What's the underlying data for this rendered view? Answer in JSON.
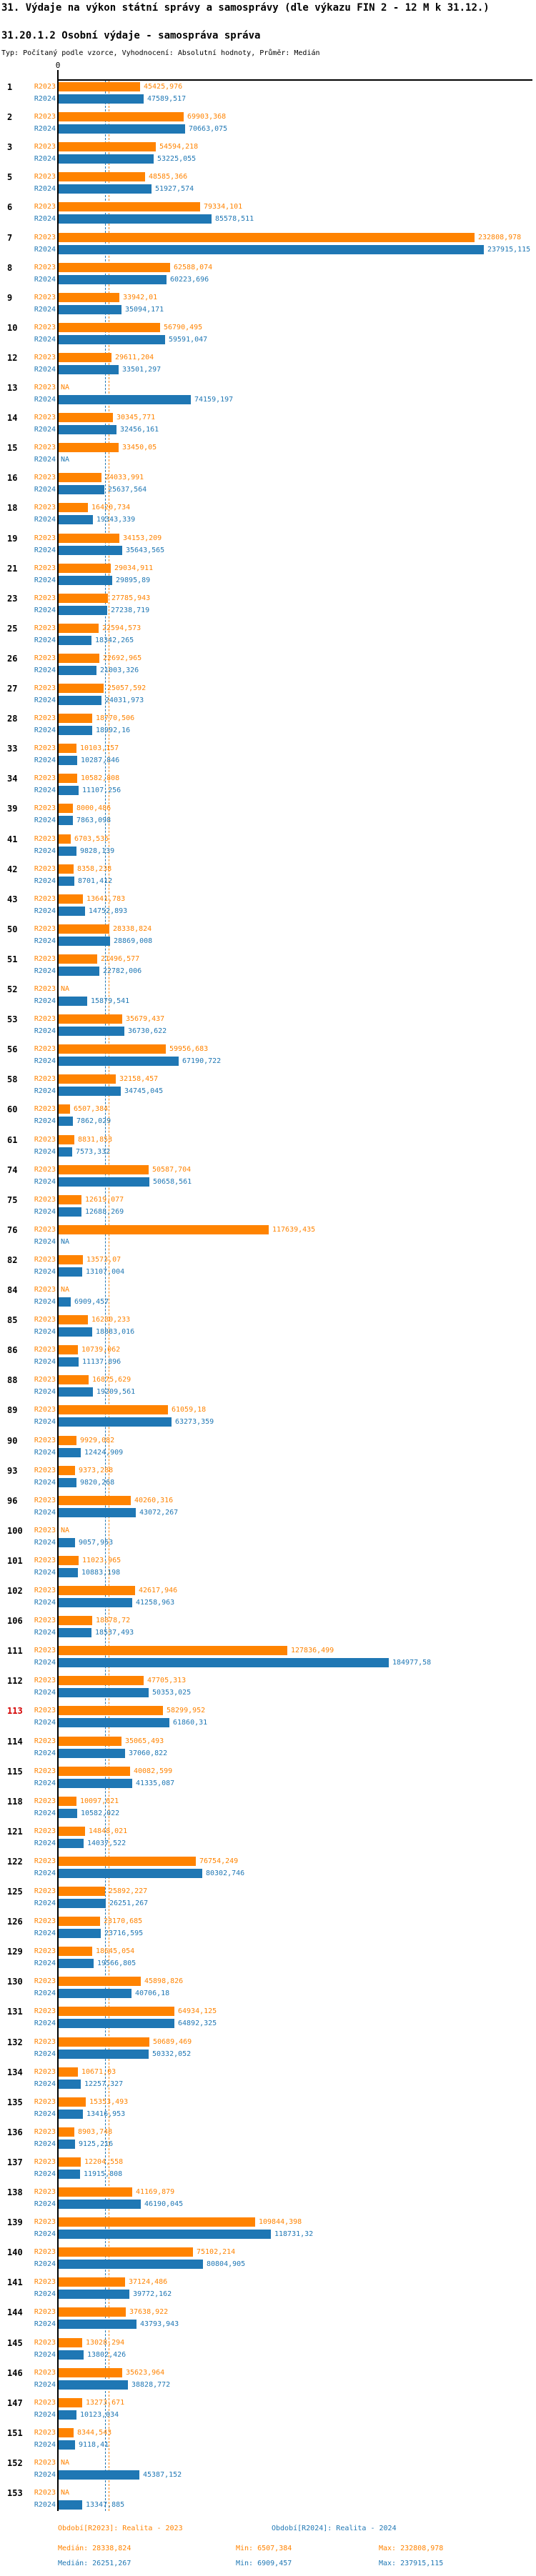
{
  "header": {
    "title": "31. Výdaje na výkon státní správy a samosprávy (dle výkazu FIN 2 - 12 M k 31.12.)",
    "subtitle": "31.20.1.2 Osobní výdaje - samospráva správa",
    "meta": "Typ: Počítaný podle vzorce, Vyhodnocení: Absolutní hodnoty, Průměr: Medián"
  },
  "axis": {
    "zero_label": "0"
  },
  "na_label": "NA",
  "series_labels": {
    "r2023": "R2023",
    "r2024": "R2024"
  },
  "colors": {
    "r2023": "#ff8300",
    "r2024": "#1f77b4",
    "highlight_row": "#d40000",
    "axis": "#000000"
  },
  "legend": {
    "r2023": "Období[R2023]: Realita - 2023",
    "r2024": "Období[R2024]: Realita - 2024"
  },
  "stats": {
    "r2023": {
      "median": "Medián: 28338,824",
      "min": "Min: 6507,384",
      "max": "Max: 232808,978"
    },
    "r2024": {
      "median": "Medián: 26251,267",
      "min": "Min: 6909,457",
      "max": "Max: 237915,115"
    }
  },
  "chart_data": {
    "type": "bar",
    "orientation": "horizontal",
    "series": [
      "R2023",
      "R2024"
    ],
    "value_format": "czech-decimal-comma",
    "xlim": [
      0,
      265000
    ],
    "grid": false,
    "medians": {
      "r2023": 28338.824,
      "r2024": 26251.267
    },
    "rows": [
      {
        "id": "1",
        "r2023": "45425,976",
        "r2024": "47589,517"
      },
      {
        "id": "2",
        "r2023": "69903,368",
        "r2024": "70663,075"
      },
      {
        "id": "3",
        "r2023": "54594,218",
        "r2024": "53225,055"
      },
      {
        "id": "5",
        "r2023": "48585,366",
        "r2024": "51927,574"
      },
      {
        "id": "6",
        "r2023": "79334,101",
        "r2024": "85578,511"
      },
      {
        "id": "7",
        "r2023": "232808,978",
        "r2024": "237915,115"
      },
      {
        "id": "8",
        "r2023": "62588,074",
        "r2024": "60223,696"
      },
      {
        "id": "9",
        "r2023": "33942,01",
        "r2024": "35094,171"
      },
      {
        "id": "10",
        "r2023": "56790,495",
        "r2024": "59591,047"
      },
      {
        "id": "12",
        "r2023": "29611,204",
        "r2024": "33501,297"
      },
      {
        "id": "13",
        "r2023": "NA",
        "r2024": "74159,197"
      },
      {
        "id": "14",
        "r2023": "30345,771",
        "r2024": "32456,161"
      },
      {
        "id": "15",
        "r2023": "33450,05",
        "r2024": "NA"
      },
      {
        "id": "16",
        "r2023": "24033,991",
        "r2024": "25637,564"
      },
      {
        "id": "18",
        "r2023": "16420,734",
        "r2024": "19343,339"
      },
      {
        "id": "19",
        "r2023": "34153,209",
        "r2024": "35643,565"
      },
      {
        "id": "21",
        "r2023": "29034,911",
        "r2024": "29895,89"
      },
      {
        "id": "23",
        "r2023": "27785,943",
        "r2024": "27238,719"
      },
      {
        "id": "25",
        "r2023": "22594,573",
        "r2024": "18342,265"
      },
      {
        "id": "26",
        "r2023": "22692,965",
        "r2024": "21003,326"
      },
      {
        "id": "27",
        "r2023": "25057,592",
        "r2024": "24031,973"
      },
      {
        "id": "28",
        "r2023": "18770,506",
        "r2024": "18992,16"
      },
      {
        "id": "33",
        "r2023": "10103,157",
        "r2024": "10287,846"
      },
      {
        "id": "34",
        "r2023": "10582,808",
        "r2024": "11107,256"
      },
      {
        "id": "39",
        "r2023": "8000,486",
        "r2024": "7863,098"
      },
      {
        "id": "41",
        "r2023": "6703,535",
        "r2024": "9828,139"
      },
      {
        "id": "42",
        "r2023": "8358,238",
        "r2024": "8701,412"
      },
      {
        "id": "43",
        "r2023": "13641,783",
        "r2024": "14752,893"
      },
      {
        "id": "50",
        "r2023": "28338,824",
        "r2024": "28869,008"
      },
      {
        "id": "51",
        "r2023": "21496,577",
        "r2024": "22782,006"
      },
      {
        "id": "52",
        "r2023": "NA",
        "r2024": "15879,541"
      },
      {
        "id": "53",
        "r2023": "35679,437",
        "r2024": "36730,622"
      },
      {
        "id": "56",
        "r2023": "59956,683",
        "r2024": "67190,722"
      },
      {
        "id": "58",
        "r2023": "32158,457",
        "r2024": "34745,045"
      },
      {
        "id": "60",
        "r2023": "6507,384",
        "r2024": "7862,029"
      },
      {
        "id": "61",
        "r2023": "8831,853",
        "r2024": "7573,332"
      },
      {
        "id": "74",
        "r2023": "50587,704",
        "r2024": "50658,561"
      },
      {
        "id": "75",
        "r2023": "12619,077",
        "r2024": "12688,269"
      },
      {
        "id": "76",
        "r2023": "117639,435",
        "r2024": "NA"
      },
      {
        "id": "82",
        "r2023": "13573,07",
        "r2024": "13107,004"
      },
      {
        "id": "84",
        "r2023": "NA",
        "r2024": "6909,457"
      },
      {
        "id": "85",
        "r2023": "16280,233",
        "r2024": "18883,016"
      },
      {
        "id": "86",
        "r2023": "10739,062",
        "r2024": "11137,896"
      },
      {
        "id": "88",
        "r2023": "16875,629",
        "r2024": "19209,561"
      },
      {
        "id": "89",
        "r2023": "61059,18",
        "r2024": "63273,359"
      },
      {
        "id": "90",
        "r2023": "9929,082",
        "r2024": "12424,909"
      },
      {
        "id": "93",
        "r2023": "9373,288",
        "r2024": "9820,268"
      },
      {
        "id": "96",
        "r2023": "40260,316",
        "r2024": "43072,267"
      },
      {
        "id": "100",
        "r2023": "NA",
        "r2024": "9057,953"
      },
      {
        "id": "101",
        "r2023": "11023,965",
        "r2024": "10883,198"
      },
      {
        "id": "102",
        "r2023": "42617,946",
        "r2024": "41258,963"
      },
      {
        "id": "106",
        "r2023": "18878,72",
        "r2024": "18537,493"
      },
      {
        "id": "111",
        "r2023": "127836,499",
        "r2024": "184977,58"
      },
      {
        "id": "112",
        "r2023": "47705,313",
        "r2024": "50353,025"
      },
      {
        "id": "113",
        "r2023": "58299,952",
        "r2024": "61860,31",
        "highlight": true
      },
      {
        "id": "114",
        "r2023": "35065,493",
        "r2024": "37060,822"
      },
      {
        "id": "115",
        "r2023": "40082,599",
        "r2024": "41335,087"
      },
      {
        "id": "118",
        "r2023": "10097,621",
        "r2024": "10582,022"
      },
      {
        "id": "121",
        "r2023": "14848,021",
        "r2024": "14037,522"
      },
      {
        "id": "122",
        "r2023": "76754,249",
        "r2024": "80302,746"
      },
      {
        "id": "125",
        "r2023": "25892,227",
        "r2024": "26251,267"
      },
      {
        "id": "126",
        "r2023": "23170,685",
        "r2024": "23716,595"
      },
      {
        "id": "129",
        "r2023": "18645,054",
        "r2024": "19566,805"
      },
      {
        "id": "130",
        "r2023": "45898,826",
        "r2024": "40706,18"
      },
      {
        "id": "131",
        "r2023": "64934,125",
        "r2024": "64892,325"
      },
      {
        "id": "132",
        "r2023": "50689,469",
        "r2024": "50332,052"
      },
      {
        "id": "134",
        "r2023": "10671,03",
        "r2024": "12257,327"
      },
      {
        "id": "135",
        "r2023": "15353,493",
        "r2024": "13416,953"
      },
      {
        "id": "136",
        "r2023": "8903,748",
        "r2024": "9125,216"
      },
      {
        "id": "137",
        "r2023": "12204,558",
        "r2024": "11915,808"
      },
      {
        "id": "138",
        "r2023": "41169,879",
        "r2024": "46190,045"
      },
      {
        "id": "139",
        "r2023": "109844,398",
        "r2024": "118731,32"
      },
      {
        "id": "140",
        "r2023": "75102,214",
        "r2024": "80804,905"
      },
      {
        "id": "141",
        "r2023": "37124,486",
        "r2024": "39772,162"
      },
      {
        "id": "144",
        "r2023": "37638,922",
        "r2024": "43793,943"
      },
      {
        "id": "145",
        "r2023": "13028,294",
        "r2024": "13802,426"
      },
      {
        "id": "146",
        "r2023": "35623,964",
        "r2024": "38828,772"
      },
      {
        "id": "147",
        "r2023": "13273,671",
        "r2024": "10123,034"
      },
      {
        "id": "151",
        "r2023": "8344,543",
        "r2024": "9118,41"
      },
      {
        "id": "152",
        "r2023": "NA",
        "r2024": "45387,152"
      },
      {
        "id": "153",
        "r2023": "NA",
        "r2024": "13347,885"
      }
    ]
  }
}
